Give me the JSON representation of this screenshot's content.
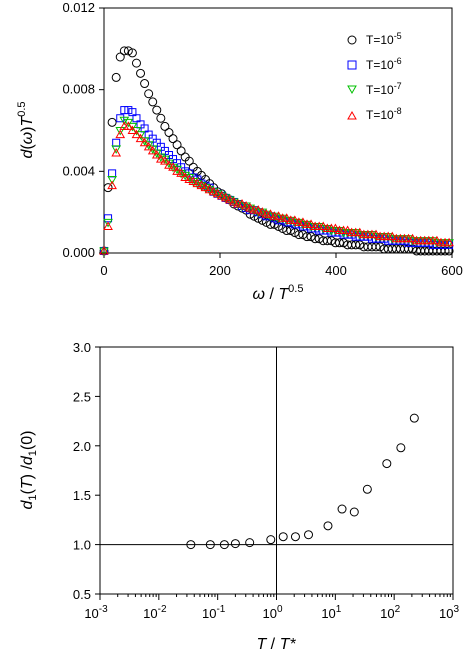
{
  "chart_data": [
    {
      "type": "scatter",
      "xlabel": {
        "italic1": "ω",
        "mid": " / ",
        "italic2": "T",
        "sup": "0.5"
      },
      "ylabel": {
        "italic1": "d",
        "mid": "(",
        "italic2": "ω",
        "close": ")",
        "italic3": "T",
        "sup": "0.5"
      },
      "xlim": [
        0,
        600
      ],
      "ylim": [
        0,
        0.012
      ],
      "xticks": [
        "0",
        "200",
        "400",
        "600"
      ],
      "yticks": [
        "0.000",
        "0.004",
        "0.008",
        "0.012"
      ],
      "legend_position": "top-right",
      "series": [
        {
          "name": "T=10",
          "name_sup": "-5",
          "marker": "circle",
          "color": "#000000",
          "x": [
            0,
            7,
            14,
            21,
            28,
            35,
            42,
            49,
            56,
            63,
            70,
            77,
            84,
            91,
            98,
            105,
            112,
            119,
            126,
            133,
            140,
            147,
            154,
            161,
            168,
            175,
            182,
            189,
            196,
            203,
            210,
            217,
            224,
            231,
            238,
            245,
            252,
            259,
            266,
            273,
            280,
            287,
            294,
            301,
            308,
            315,
            322,
            329,
            336,
            343,
            350,
            357,
            364,
            371,
            378,
            385,
            392,
            399,
            406,
            413,
            420,
            427,
            434,
            441,
            448,
            455,
            462,
            469,
            476,
            483,
            490,
            497,
            504,
            511,
            518,
            525,
            532,
            539,
            546,
            553,
            560,
            567,
            574,
            581,
            588,
            595
          ],
          "y": [
            0.0001,
            0.0032,
            0.0064,
            0.0086,
            0.0096,
            0.0099,
            0.0099,
            0.0098,
            0.0093,
            0.0088,
            0.0083,
            0.0078,
            0.0074,
            0.007,
            0.0066,
            0.0062,
            0.0059,
            0.0056,
            0.0053,
            0.005,
            0.0047,
            0.0045,
            0.0042,
            0.004,
            0.0038,
            0.0036,
            0.0034,
            0.0032,
            0.003,
            0.0029,
            0.0027,
            0.0026,
            0.0024,
            0.0023,
            0.0022,
            0.0021,
            0.0019,
            0.0018,
            0.0017,
            0.0016,
            0.0015,
            0.0014,
            0.0014,
            0.0013,
            0.0012,
            0.0011,
            0.0011,
            0.001,
            0.0009,
            0.0009,
            0.0008,
            0.0008,
            0.0007,
            0.0007,
            0.0006,
            0.0006,
            0.0006,
            0.0005,
            0.0005,
            0.0005,
            0.0004,
            0.0004,
            0.0004,
            0.0004,
            0.0003,
            0.0003,
            0.0003,
            0.0003,
            0.0003,
            0.0002,
            0.0002,
            0.0002,
            0.0002,
            0.0002,
            0.0002,
            0.0002,
            0.0002,
            0.0001,
            0.0001,
            0.0001,
            0.0001,
            0.0001,
            0.0001,
            0.0001,
            0.0001,
            0.0001
          ]
        },
        {
          "name": "T=10",
          "name_sup": "-6",
          "marker": "square",
          "color": "#0000ff",
          "x": [
            0,
            7,
            14,
            21,
            28,
            35,
            42,
            49,
            56,
            63,
            70,
            77,
            84,
            91,
            98,
            105,
            112,
            119,
            126,
            133,
            140,
            147,
            154,
            161,
            168,
            175,
            182,
            189,
            196,
            203,
            210,
            217,
            224,
            231,
            238,
            245,
            252,
            259,
            266,
            273,
            280,
            287,
            294,
            301,
            308,
            315,
            322,
            329,
            336,
            343,
            350,
            357,
            364,
            371,
            378,
            385,
            392,
            399,
            406,
            413,
            420,
            427,
            434,
            441,
            448,
            455,
            462,
            469,
            476,
            483,
            490,
            497,
            504,
            511,
            518,
            525,
            532,
            539,
            546,
            553,
            560,
            567,
            574,
            581,
            588,
            595
          ],
          "y": [
            0.0001,
            0.0017,
            0.0039,
            0.0054,
            0.0066,
            0.007,
            0.007,
            0.0069,
            0.0066,
            0.0063,
            0.0061,
            0.0058,
            0.0056,
            0.0054,
            0.0052,
            0.005,
            0.0048,
            0.0046,
            0.0044,
            0.0042,
            0.004,
            0.0039,
            0.0037,
            0.0036,
            0.0034,
            0.0033,
            0.0032,
            0.003,
            0.0029,
            0.0028,
            0.0027,
            0.0026,
            0.0025,
            0.0024,
            0.0023,
            0.0022,
            0.0021,
            0.0021,
            0.002,
            0.0019,
            0.0018,
            0.0018,
            0.0017,
            0.0016,
            0.0016,
            0.0015,
            0.0015,
            0.0014,
            0.0014,
            0.0013,
            0.0013,
            0.0012,
            0.0012,
            0.0011,
            0.0011,
            0.0011,
            0.001,
            0.001,
            0.001,
            0.0009,
            0.0009,
            0.0009,
            0.0008,
            0.0008,
            0.0008,
            0.0008,
            0.0007,
            0.0007,
            0.0007,
            0.0007,
            0.0006,
            0.0006,
            0.0006,
            0.0006,
            0.0006,
            0.0005,
            0.0005,
            0.0005,
            0.0005,
            0.0005,
            0.0005,
            0.0004,
            0.0004,
            0.0004,
            0.0004,
            0.0004
          ]
        },
        {
          "name": "T=10",
          "name_sup": "-7",
          "marker": "triangle-down",
          "color": "#00c000",
          "x": [
            0,
            7,
            14,
            21,
            28,
            35,
            42,
            49,
            56,
            63,
            70,
            77,
            84,
            91,
            98,
            105,
            112,
            119,
            126,
            133,
            140,
            147,
            154,
            161,
            168,
            175,
            182,
            189,
            196,
            203,
            210,
            217,
            224,
            231,
            238,
            245,
            252,
            259,
            266,
            273,
            280,
            287,
            294,
            301,
            308,
            315,
            322,
            329,
            336,
            343,
            350,
            357,
            364,
            371,
            378,
            385,
            392,
            399,
            406,
            413,
            420,
            427,
            434,
            441,
            448,
            455,
            462,
            469,
            476,
            483,
            490,
            497,
            504,
            511,
            518,
            525,
            532,
            539,
            546,
            553,
            560,
            567,
            574,
            581,
            588,
            595
          ],
          "y": [
            0.0001,
            0.0015,
            0.0036,
            0.0051,
            0.006,
            0.0065,
            0.0064,
            0.0062,
            0.006,
            0.0058,
            0.0055,
            0.0053,
            0.0051,
            0.0049,
            0.0047,
            0.0046,
            0.0044,
            0.0042,
            0.0041,
            0.0039,
            0.0038,
            0.0037,
            0.0035,
            0.0034,
            0.0033,
            0.0032,
            0.0031,
            0.003,
            0.0029,
            0.0028,
            0.0027,
            0.0026,
            0.0025,
            0.0024,
            0.0023,
            0.0023,
            0.0022,
            0.0021,
            0.002,
            0.002,
            0.0019,
            0.0018,
            0.0018,
            0.0017,
            0.0017,
            0.0016,
            0.0016,
            0.0015,
            0.0015,
            0.0014,
            0.0014,
            0.0013,
            0.0013,
            0.0013,
            0.0012,
            0.0012,
            0.0011,
            0.0011,
            0.0011,
            0.001,
            0.001,
            0.001,
            0.001,
            0.0009,
            0.0009,
            0.0009,
            0.0009,
            0.0008,
            0.0008,
            0.0008,
            0.0008,
            0.0007,
            0.0007,
            0.0007,
            0.0007,
            0.0007,
            0.0006,
            0.0006,
            0.0006,
            0.0006,
            0.0006,
            0.0006,
            0.0005,
            0.0005,
            0.0005,
            0.0005
          ]
        },
        {
          "name": "T=10",
          "name_sup": "-8",
          "marker": "triangle-up",
          "color": "#ff0000",
          "x": [
            0,
            7,
            14,
            21,
            28,
            35,
            42,
            49,
            56,
            63,
            70,
            77,
            84,
            91,
            98,
            105,
            112,
            119,
            126,
            133,
            140,
            147,
            154,
            161,
            168,
            175,
            182,
            189,
            196,
            203,
            210,
            217,
            224,
            231,
            238,
            245,
            252,
            259,
            266,
            273,
            280,
            287,
            294,
            301,
            308,
            315,
            322,
            329,
            336,
            343,
            350,
            357,
            364,
            371,
            378,
            385,
            392,
            399,
            406,
            413,
            420,
            427,
            434,
            441,
            448,
            455,
            462,
            469,
            476,
            483,
            490,
            497,
            504,
            511,
            518,
            525,
            532,
            539,
            546,
            553,
            560,
            567,
            574,
            581,
            588,
            595
          ],
          "y": [
            0.0001,
            0.0013,
            0.0033,
            0.0049,
            0.0058,
            0.0062,
            0.0062,
            0.006,
            0.0058,
            0.0056,
            0.0054,
            0.0052,
            0.005,
            0.0048,
            0.0046,
            0.0045,
            0.0043,
            0.0042,
            0.004,
            0.0039,
            0.0037,
            0.0036,
            0.0035,
            0.0034,
            0.0033,
            0.0032,
            0.0031,
            0.003,
            0.0029,
            0.0028,
            0.0027,
            0.0026,
            0.0025,
            0.0024,
            0.0024,
            0.0023,
            0.0022,
            0.0021,
            0.0021,
            0.002,
            0.0019,
            0.0019,
            0.0018,
            0.0018,
            0.0017,
            0.0017,
            0.0016,
            0.0016,
            0.0015,
            0.0015,
            0.0014,
            0.0014,
            0.0013,
            0.0013,
            0.0013,
            0.0012,
            0.0012,
            0.0012,
            0.0011,
            0.0011,
            0.0011,
            0.001,
            0.001,
            0.001,
            0.0009,
            0.0009,
            0.0009,
            0.0009,
            0.0008,
            0.0008,
            0.0008,
            0.0008,
            0.0007,
            0.0007,
            0.0007,
            0.0007,
            0.0007,
            0.0006,
            0.0006,
            0.0006,
            0.0006,
            0.0006,
            0.0006,
            0.0005,
            0.0005,
            0.0005
          ]
        }
      ]
    },
    {
      "type": "scatter",
      "xlabel": {
        "italic1": "T",
        "mid": " / ",
        "italic2": "T*"
      },
      "ylabel": {
        "italic1": "d",
        "sub1": "1",
        "mid": "(",
        "italic2": "T",
        "close": ") /",
        "italic3": "d",
        "sub2": "1",
        "tail": "(0)"
      },
      "xscale": "log",
      "xlim": [
        0.001,
        1000
      ],
      "ylim": [
        0.5,
        3.0
      ],
      "xticks": [
        {
          "base": "10",
          "exp": "-3"
        },
        {
          "base": "10",
          "exp": "-2"
        },
        {
          "base": "10",
          "exp": "-1"
        },
        {
          "base": "10",
          "exp": "0"
        },
        {
          "base": "10",
          "exp": "1"
        },
        {
          "base": "10",
          "exp": "2"
        },
        {
          "base": "10",
          "exp": "3"
        }
      ],
      "yticks": [
        "0.5",
        "1.0",
        "1.5",
        "2.0",
        "2.5",
        "3.0"
      ],
      "reference_lines": {
        "horizontal_y": 1.0,
        "vertical_x": 1.0
      },
      "series": [
        {
          "marker": "circle",
          "color": "#000000",
          "x": [
            0.035,
            0.075,
            0.13,
            0.2,
            0.35,
            0.8,
            1.3,
            2.1,
            3.5,
            7.5,
            13,
            21,
            35,
            75,
            130,
            220
          ],
          "y": [
            1.0,
            1.0,
            1.0,
            1.01,
            1.02,
            1.05,
            1.08,
            1.08,
            1.1,
            1.19,
            1.36,
            1.33,
            1.56,
            1.82,
            1.98,
            2.28
          ]
        }
      ]
    }
  ]
}
